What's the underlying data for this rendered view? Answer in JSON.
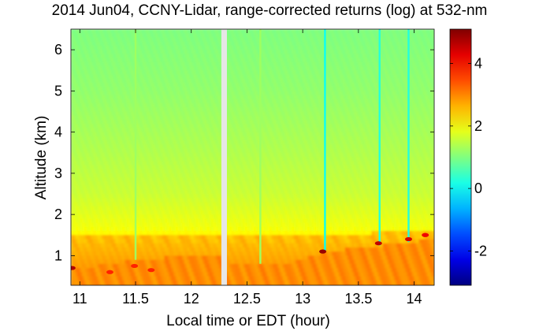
{
  "chart_data": {
    "type": "heatmap",
    "title": "2014 Jun04, CCNY-Lidar, range-corrected returns (log) at 532-nm",
    "xlabel": "Local time or EDT (hour)",
    "ylabel": "Altitude (km)",
    "xlim": [
      10.92,
      14.18
    ],
    "ylim": [
      0.28,
      6.5
    ],
    "x_ticks": [
      11,
      11.5,
      12,
      12.5,
      13,
      13.5,
      14
    ],
    "x_tick_labels": [
      "11",
      "11.5",
      "12",
      "12.5",
      "13",
      "13.5",
      "14"
    ],
    "y_ticks": [
      1,
      2,
      3,
      4,
      5,
      6
    ],
    "y_tick_labels": [
      "1",
      "2",
      "3",
      "4",
      "5",
      "6"
    ],
    "colorbar": {
      "colormap": "jet",
      "range": [
        -3.1,
        5.1
      ],
      "ticks": [
        -2,
        0,
        2,
        4
      ],
      "tick_labels": [
        "-2",
        "0",
        "2",
        "4"
      ]
    },
    "grid": false,
    "data_gap": {
      "x_start": 12.27,
      "x_end": 12.32
    },
    "field_levels": [
      {
        "altitude_km": 6.5,
        "log_value": 1.0
      },
      {
        "altitude_km": 5.0,
        "log_value": 1.15
      },
      {
        "altitude_km": 3.5,
        "log_value": 1.4
      },
      {
        "altitude_km": 2.5,
        "log_value": 1.6
      },
      {
        "altitude_km": 1.6,
        "log_value": 1.95
      },
      {
        "altitude_km": 1.3,
        "log_value": 2.55
      },
      {
        "altitude_km": 0.8,
        "log_value": 2.8
      },
      {
        "altitude_km": 0.28,
        "log_value": 3.0
      }
    ],
    "boundary_layer_top": [
      {
        "x": 10.92,
        "altitude_km": 1.5
      },
      {
        "x": 12.27,
        "altitude_km": 1.5
      },
      {
        "x": 12.32,
        "altitude_km": 1.55
      },
      {
        "x": 13.0,
        "altitude_km": 1.5
      },
      {
        "x": 13.6,
        "altitude_km": 1.55
      },
      {
        "x": 14.18,
        "altitude_km": 1.6
      }
    ],
    "mixed_layer_top": [
      {
        "x": 10.92,
        "altitude_km": 0.65
      },
      {
        "x": 11.5,
        "altitude_km": 0.9
      },
      {
        "x": 12.27,
        "altitude_km": 1.05
      },
      {
        "x": 12.32,
        "altitude_km": 0.75
      },
      {
        "x": 12.9,
        "altitude_km": 0.85
      },
      {
        "x": 13.2,
        "altitude_km": 1.1
      },
      {
        "x": 13.7,
        "altitude_km": 1.25
      },
      {
        "x": 14.18,
        "altitude_km": 1.4
      }
    ],
    "vertical_streaks": [
      {
        "x": 11.5,
        "log_value": 1.25
      },
      {
        "x": 12.62,
        "log_value": 1.25
      },
      {
        "x": 13.2,
        "log_value": 0.05
      },
      {
        "x": 13.69,
        "log_value": 0.25
      },
      {
        "x": 13.95,
        "log_value": 0.25
      }
    ],
    "cloud_returns": [
      {
        "x": 13.18,
        "altitude_km": 1.1,
        "log_value": 4.9
      },
      {
        "x": 13.68,
        "altitude_km": 1.3,
        "log_value": 4.6
      },
      {
        "x": 13.95,
        "altitude_km": 1.4,
        "log_value": 4.4
      },
      {
        "x": 14.1,
        "altitude_km": 1.5,
        "log_value": 4.2
      },
      {
        "x": 10.93,
        "altitude_km": 0.7,
        "log_value": 4.7
      },
      {
        "x": 11.27,
        "altitude_km": 0.6,
        "log_value": 3.8
      },
      {
        "x": 11.49,
        "altitude_km": 0.75,
        "log_value": 3.8
      },
      {
        "x": 11.64,
        "altitude_km": 0.65,
        "log_value": 3.8
      }
    ]
  }
}
